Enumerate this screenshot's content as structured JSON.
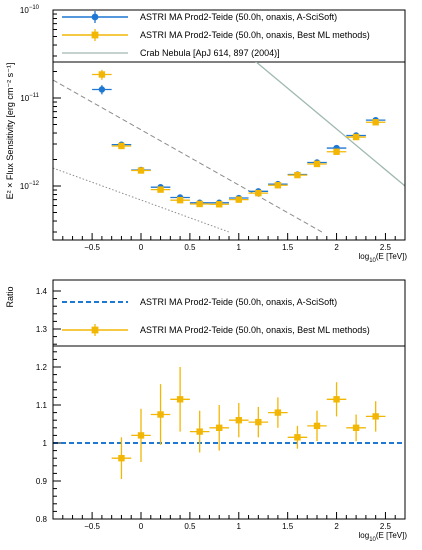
{
  "chart_data": [
    {
      "type": "scatter",
      "ylog": true,
      "xlabel": "log",
      "xlabel_sub": "10",
      "xlabel_tail": "(E [TeV])",
      "ylabel": "E² × Flux Sensitivity [erg cm⁻² s⁻¹]",
      "xlim": [
        -0.9,
        2.7
      ],
      "ylim": [
        3e-13,
        1e-10
      ],
      "x_ticks": [
        -0.5,
        0,
        0.5,
        1,
        1.5,
        2,
        2.5
      ],
      "x_tick_labels": [
        "−0.5",
        "0",
        "0.5",
        "1",
        "1.5",
        "2",
        "2.5"
      ],
      "y_tick_labels": {
        "top": "10",
        "top_exp": "−10",
        "mid": "10",
        "mid_exp": "−11",
        "low": "10",
        "low_exp": "−12"
      },
      "legend_position": "top",
      "series": [
        {
          "name": "ASTRI MA Prod2-Teide (50.0h, onaxis, A-SciSoft)",
          "color": "#1f77d4",
          "marker": "circle",
          "x": [
            -0.4,
            -0.2,
            0,
            0.2,
            0.4,
            0.6,
            0.8,
            1.0,
            1.2,
            1.4,
            1.6,
            1.8,
            2.0,
            2.2,
            2.4
          ],
          "y": [
            1.25e-11,
            2.95e-12,
            1.52e-12,
            9.7e-13,
            7.4e-13,
            6.45e-13,
            6.45e-13,
            7.3e-13,
            8.7e-13,
            1.05e-12,
            1.35e-12,
            1.85e-12,
            2.7e-12,
            3.75e-12,
            5.6e-12
          ],
          "yerr_rel": [
            0.12,
            0.03,
            0.02,
            0.02,
            0.02,
            0.02,
            0.02,
            0.02,
            0.02,
            0.02,
            0.02,
            0.02,
            0.02,
            0.02,
            0.02
          ]
        },
        {
          "name": "ASTRI MA Prod2-Teide (50.0h, onaxis, Best ML methods)",
          "color": "#f2b705",
          "marker": "square",
          "x": [
            -0.4,
            -0.2,
            0,
            0.2,
            0.4,
            0.6,
            0.8,
            1.0,
            1.2,
            1.4,
            1.6,
            1.8,
            2.0,
            2.2,
            2.4
          ],
          "y": [
            1.85e-11,
            2.85e-12,
            1.5e-12,
            9.1e-13,
            6.9e-13,
            6.25e-13,
            6.2e-13,
            7e-13,
            8.3e-13,
            1.02e-12,
            1.33e-12,
            1.78e-12,
            2.45e-12,
            3.6e-12,
            5.3e-12
          ],
          "yerr_rel": [
            0.13,
            0.03,
            0.03,
            0.03,
            0.03,
            0.03,
            0.03,
            0.03,
            0.03,
            0.03,
            0.03,
            0.03,
            0.03,
            0.03,
            0.03
          ]
        },
        {
          "name": "Crab Nebula [ApJ 614, 897 (2004)]",
          "color": "#9fb8b0",
          "marker": "line",
          "x": [
            1.06,
            2.7
          ],
          "y": [
            3.3e-11,
            1e-12
          ]
        }
      ],
      "reference_lines": [
        {
          "style": "dashed",
          "color": "#8c8c8c",
          "x": [
            -0.9,
            1.85
          ],
          "y": [
            1.6e-11,
            3e-13
          ]
        },
        {
          "style": "dotted",
          "color": "#8c8c8c",
          "x": [
            -0.9,
            0.9
          ],
          "y": [
            1.6e-12,
            3e-13
          ]
        }
      ]
    },
    {
      "type": "scatter",
      "xlabel": "log",
      "xlabel_sub": "10",
      "xlabel_tail": "(E [TeV])",
      "ylabel": "Ratio",
      "xlim": [
        -0.9,
        2.7
      ],
      "ylim": [
        0.8,
        1.43
      ],
      "x_ticks": [
        -0.5,
        0,
        0.5,
        1,
        1.5,
        2,
        2.5
      ],
      "x_tick_labels": [
        "−0.5",
        "0",
        "0.5",
        "1",
        "1.5",
        "2",
        "2.5"
      ],
      "y_ticks": [
        0.8,
        0.9,
        1,
        1.1,
        1.2,
        1.3,
        1.4
      ],
      "y_tick_labels": [
        "0.8",
        "0.9",
        "1",
        "1.1",
        "1.2",
        "1.3",
        "1.4"
      ],
      "legend_position": "top",
      "series": [
        {
          "name": "ASTRI MA Prod2-Teide (50.0h, onaxis, A-SciSoft)",
          "color": "#1f77d4",
          "marker": "dashed-line",
          "y_const": 1.0
        },
        {
          "name": "ASTRI MA Prod2-Teide (50.0h, onaxis, Best ML methods)",
          "color": "#f2b705",
          "marker": "square",
          "x": [
            -0.2,
            0,
            0.2,
            0.4,
            0.6,
            0.8,
            1.0,
            1.2,
            1.4,
            1.6,
            1.8,
            2.0,
            2.2,
            2.4
          ],
          "y": [
            0.96,
            1.02,
            1.075,
            1.115,
            1.03,
            1.04,
            1.06,
            1.055,
            1.08,
            1.015,
            1.045,
            1.115,
            1.04,
            1.07
          ],
          "yerr": [
            0.055,
            0.07,
            0.08,
            0.085,
            0.055,
            0.06,
            0.045,
            0.04,
            0.04,
            0.03,
            0.04,
            0.045,
            0.035,
            0.04
          ]
        }
      ]
    }
  ]
}
